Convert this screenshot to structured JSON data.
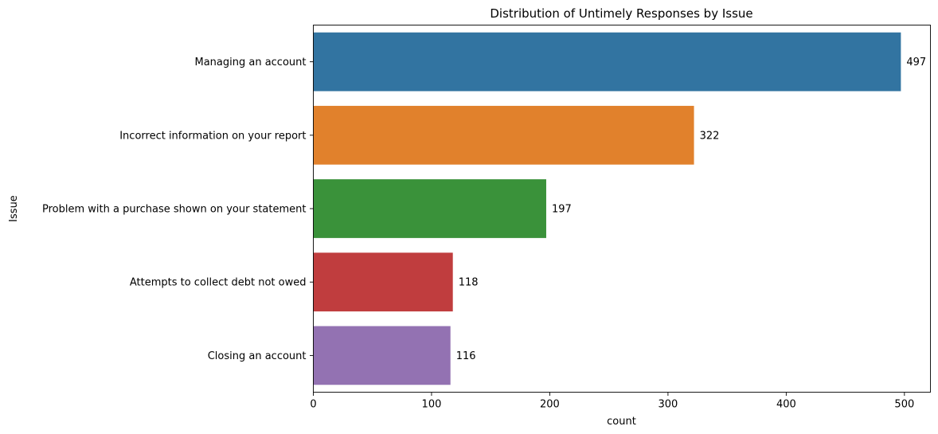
{
  "chart_data": {
    "type": "bar",
    "orientation": "horizontal",
    "title": "Distribution of Untimely Responses by Issue",
    "xlabel": "count",
    "ylabel": "Issue",
    "xlim": [
      0,
      522
    ],
    "xticks": [
      0,
      100,
      200,
      300,
      400,
      500
    ],
    "grid": false,
    "categories": [
      "Managing an account",
      "Incorrect information on your report",
      "Problem with a purchase shown on your statement",
      "Attempts to collect debt not owed",
      "Closing an account"
    ],
    "values": [
      497,
      322,
      197,
      118,
      116
    ],
    "colors": [
      "#3274a1",
      "#e1812c",
      "#3a923a",
      "#c03d3e",
      "#9372b2"
    ]
  }
}
